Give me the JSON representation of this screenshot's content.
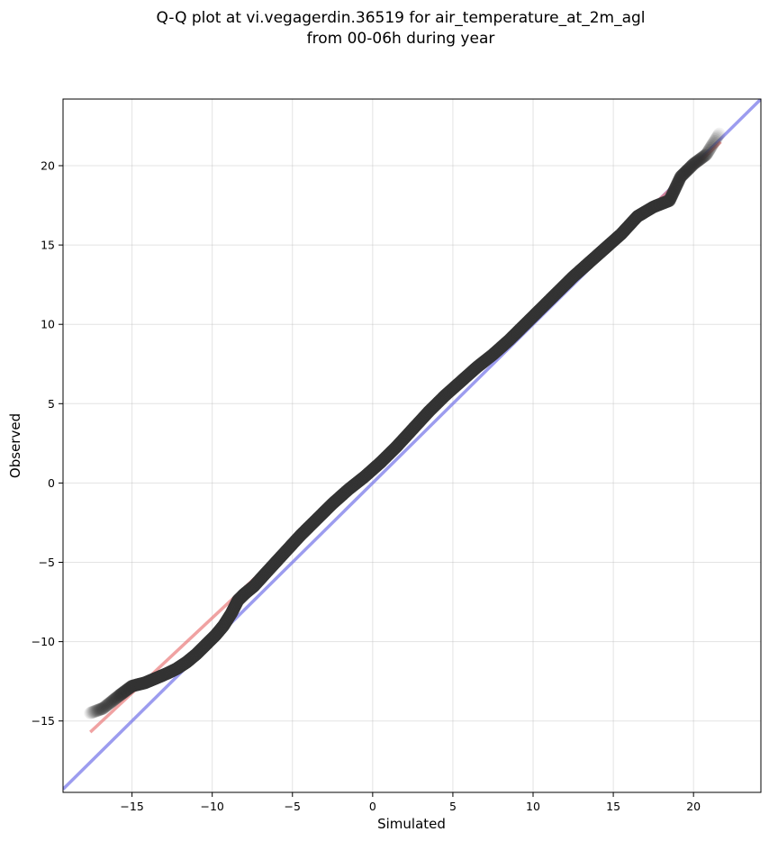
{
  "chart_data": {
    "type": "scatter",
    "title_line1": "Q-Q plot at vi.vegagerdin.36519 for air_temperature_at_2m_agl",
    "title_line2": "from 00-06h during year",
    "xlabel": "Simulated",
    "ylabel": "Observed",
    "xlim": [
      -19.3,
      24.2
    ],
    "ylim": [
      -19.5,
      24.2
    ],
    "xticks": [
      -15,
      -10,
      -5,
      0,
      5,
      10,
      15,
      20
    ],
    "yticks": [
      -15,
      -10,
      -5,
      0,
      5,
      10,
      15,
      20
    ],
    "xtick_labels": [
      "−15",
      "−10",
      "−5",
      "0",
      "5",
      "10",
      "15",
      "20"
    ],
    "ytick_labels": [
      "−15",
      "−10",
      "−5",
      "0",
      "5",
      "10",
      "15",
      "20"
    ],
    "grid": true,
    "reference_line": {
      "x": [
        -19.3,
        24.2
      ],
      "y": [
        -19.3,
        24.2
      ],
      "color": "#7b7bea"
    },
    "fit_line": {
      "x": [
        -17.6,
        21.7
      ],
      "y": [
        -15.7,
        21.5
      ],
      "color": "#ea7b7b"
    },
    "quantile_curve": {
      "x": [
        -17.6,
        -16.8,
        -15.8,
        -15.0,
        -14.2,
        -13.5,
        -12.8,
        -12.2,
        -11.6,
        -11.0,
        -10.4,
        -9.8,
        -9.3,
        -8.8,
        -8.4,
        -8.0,
        -7.4,
        -6.5,
        -5.5,
        -4.5,
        -3.5,
        -2.5,
        -1.5,
        -0.5,
        0.5,
        1.5,
        2.5,
        3.5,
        4.5,
        5.5,
        6.5,
        7.5,
        8.5,
        9.5,
        10.5,
        11.5,
        12.5,
        13.5,
        14.5,
        15.5,
        16.5,
        17.5,
        18.5,
        19.2,
        20.0,
        20.8,
        21.6
      ],
      "y": [
        -14.5,
        -14.2,
        -13.4,
        -12.8,
        -12.6,
        -12.3,
        -12.0,
        -11.7,
        -11.3,
        -10.8,
        -10.2,
        -9.6,
        -9.0,
        -8.2,
        -7.4,
        -7.0,
        -6.5,
        -5.5,
        -4.4,
        -3.3,
        -2.3,
        -1.3,
        -0.4,
        0.4,
        1.3,
        2.3,
        3.4,
        4.5,
        5.5,
        6.4,
        7.3,
        8.1,
        9.0,
        10.0,
        11.0,
        12.0,
        13.0,
        13.9,
        14.8,
        15.7,
        16.8,
        17.4,
        17.8,
        19.3,
        20.1,
        20.7,
        22.0
      ]
    },
    "point_color": "#333333",
    "point_opacity_range": [
      0.06,
      0.9
    ]
  }
}
